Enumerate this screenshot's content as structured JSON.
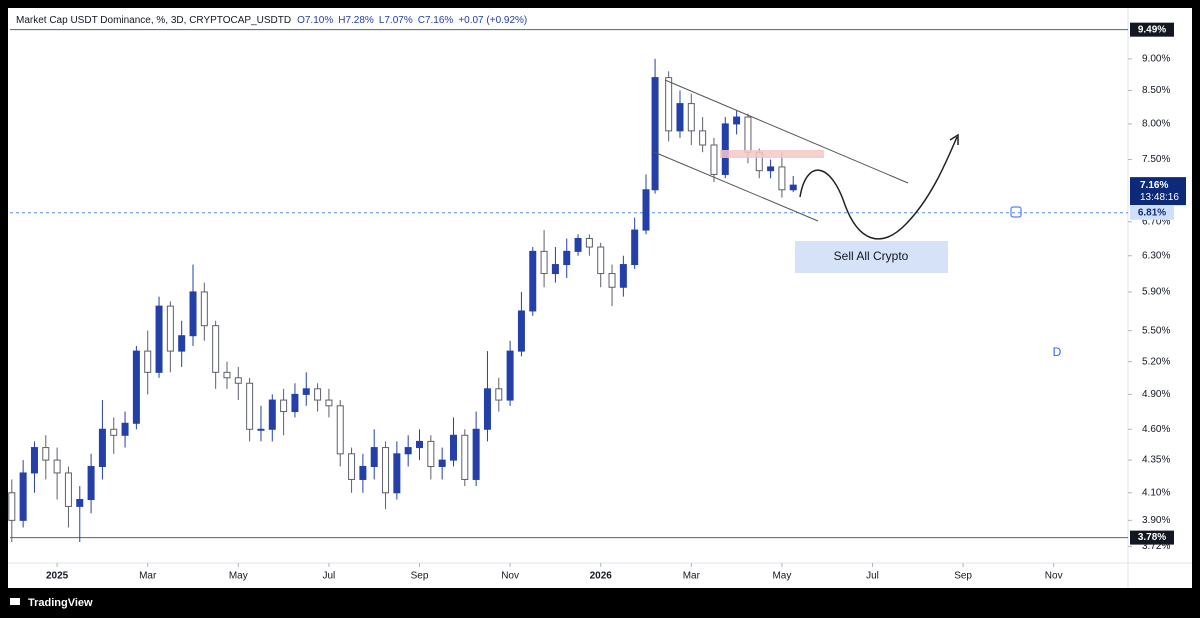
{
  "chart_data": {
    "type": "candlestick",
    "title": "Market Cap USDT Dominance, %, 3D, CRYPTOCAP_USDTD",
    "ohlc_legend": [
      "O7.10%",
      "H7.28%",
      "L7.07%",
      "C7.16%",
      "+0.07 (+0.92%)"
    ],
    "log_scale": true,
    "up_color": "#2440a8",
    "down_color": "#ffffff",
    "down_border": "#5d606b",
    "xlim": [
      -1.04,
      23.64
    ],
    "ylim": [
      3.61,
      9.87
    ],
    "xticks": [
      {
        "value": 0,
        "label": "2025"
      },
      {
        "value": 2,
        "label": "Mar"
      },
      {
        "value": 4,
        "label": "May"
      },
      {
        "value": 6,
        "label": "Jul"
      },
      {
        "value": 8,
        "label": "Sep"
      },
      {
        "value": 10,
        "label": "Nov"
      },
      {
        "value": 12,
        "label": "2026"
      },
      {
        "value": 14,
        "label": "Mar"
      },
      {
        "value": 16,
        "label": "May"
      },
      {
        "value": 18,
        "label": "Jul"
      },
      {
        "value": 20,
        "label": "Sep"
      },
      {
        "value": 22,
        "label": "Nov"
      }
    ],
    "yticks": [
      {
        "value": 9.0,
        "label": "9.00%"
      },
      {
        "value": 8.5,
        "label": "8.50%"
      },
      {
        "value": 8.0,
        "label": "8.00%"
      },
      {
        "value": 7.5,
        "label": "7.50%"
      },
      {
        "value": 6.7,
        "label": "6.70%"
      },
      {
        "value": 6.3,
        "label": "6.30%"
      },
      {
        "value": 5.9,
        "label": "5.90%"
      },
      {
        "value": 5.5,
        "label": "5.50%"
      },
      {
        "value": 5.2,
        "label": "5.20%"
      },
      {
        "value": 4.9,
        "label": "4.90%"
      },
      {
        "value": 4.6,
        "label": "4.60%"
      },
      {
        "value": 4.35,
        "label": "4.35%"
      },
      {
        "value": 4.1,
        "label": "4.10%"
      },
      {
        "value": 3.9,
        "label": "3.90%"
      },
      {
        "value": 3.72,
        "label": "3.72%"
      }
    ],
    "hlines": [
      {
        "value": 9.49,
        "label": "9.49%"
      },
      {
        "value": 3.78,
        "label": "3.78%"
      }
    ],
    "dashed_line": {
      "value": 6.81,
      "label": "6.81%"
    },
    "last_price": {
      "value": 7.16,
      "label": "7.16%",
      "countdown": "13:48:16"
    },
    "annotation": "Sell All Crypto",
    "marker": "D",
    "x": [
      -1.0,
      -0.75,
      -0.5,
      -0.25,
      0,
      0.25,
      0.5,
      0.75,
      1.0,
      1.25,
      1.5,
      1.75,
      2.0,
      2.25,
      2.5,
      2.75,
      3.0,
      3.25,
      3.5,
      3.75,
      4.0,
      4.25,
      4.5,
      4.75,
      5.0,
      5.25,
      5.5,
      5.75,
      6.0,
      6.25,
      6.5,
      6.75,
      7.0,
      7.25,
      7.5,
      7.75,
      8.0,
      8.25,
      8.5,
      8.75,
      9.0,
      9.25,
      9.5,
      9.75,
      10.0,
      10.25,
      10.5,
      10.75,
      11.0,
      11.25,
      11.5,
      11.75,
      12.0,
      12.25,
      12.5,
      12.75,
      13.0,
      13.2,
      13.5,
      13.75,
      14.0,
      14.25,
      14.5,
      14.75,
      15.0,
      15.25,
      15.5,
      15.75,
      16.0,
      16.25
    ],
    "open": [
      4.1,
      3.9,
      4.25,
      4.45,
      4.35,
      4.25,
      4.0,
      4.05,
      4.3,
      4.6,
      4.55,
      4.65,
      5.3,
      5.1,
      5.75,
      5.3,
      5.45,
      5.9,
      5.55,
      5.1,
      5.05,
      5.0,
      4.6,
      4.6,
      4.85,
      4.75,
      4.9,
      4.95,
      4.85,
      4.8,
      4.4,
      4.2,
      4.3,
      4.45,
      4.1,
      4.4,
      4.45,
      4.5,
      4.3,
      4.35,
      4.55,
      4.2,
      4.6,
      4.95,
      4.85,
      5.3,
      5.7,
      6.35,
      6.1,
      6.2,
      6.35,
      6.5,
      6.4,
      6.1,
      5.95,
      6.2,
      6.6,
      7.1,
      8.7,
      7.9,
      8.3,
      7.9,
      7.7,
      7.3,
      8.0,
      8.1,
      7.6,
      7.35,
      7.4,
      7.1
    ],
    "high": [
      4.2,
      4.35,
      4.5,
      4.55,
      4.45,
      4.3,
      4.15,
      4.4,
      4.85,
      4.7,
      4.75,
      5.35,
      5.5,
      5.85,
      5.8,
      5.6,
      6.2,
      6.0,
      5.6,
      5.2,
      5.15,
      5.05,
      4.8,
      4.9,
      4.95,
      5.0,
      5.1,
      5.0,
      4.95,
      4.85,
      4.45,
      4.4,
      4.6,
      4.5,
      4.5,
      4.55,
      4.6,
      4.55,
      4.45,
      4.7,
      4.6,
      4.75,
      5.3,
      5.05,
      5.4,
      5.9,
      6.4,
      6.6,
      6.4,
      6.5,
      6.55,
      6.55,
      6.45,
      6.2,
      6.3,
      6.75,
      7.3,
      9.0,
      8.8,
      8.5,
      8.45,
      8.1,
      7.8,
      8.1,
      8.2,
      8.15,
      7.65,
      7.5,
      7.6,
      7.28
    ],
    "low": [
      3.75,
      3.85,
      4.1,
      4.2,
      4.05,
      3.85,
      3.75,
      3.95,
      4.2,
      4.4,
      4.45,
      4.6,
      4.9,
      5.05,
      5.1,
      5.15,
      5.35,
      5.4,
      4.95,
      4.95,
      4.85,
      4.5,
      4.5,
      4.5,
      4.55,
      4.7,
      4.8,
      4.75,
      4.7,
      4.3,
      4.1,
      4.1,
      4.2,
      3.98,
      4.05,
      4.3,
      4.35,
      4.2,
      4.2,
      4.3,
      4.15,
      4.15,
      4.5,
      4.75,
      4.8,
      5.25,
      5.65,
      5.95,
      6.0,
      6.05,
      6.3,
      6.3,
      5.95,
      5.75,
      5.85,
      6.15,
      6.55,
      7.05,
      7.75,
      7.8,
      7.7,
      7.6,
      7.2,
      7.25,
      7.85,
      7.45,
      7.25,
      7.25,
      7.0,
      7.07
    ],
    "close": [
      3.9,
      4.25,
      4.45,
      4.35,
      4.25,
      4.0,
      4.05,
      4.3,
      4.6,
      4.55,
      4.65,
      5.3,
      5.1,
      5.75,
      5.3,
      5.45,
      5.9,
      5.55,
      5.1,
      5.05,
      5.0,
      4.6,
      4.6,
      4.85,
      4.75,
      4.9,
      4.95,
      4.85,
      4.8,
      4.4,
      4.2,
      4.3,
      4.45,
      4.1,
      4.4,
      4.45,
      4.5,
      4.3,
      4.35,
      4.55,
      4.2,
      4.6,
      4.95,
      4.85,
      5.3,
      5.7,
      6.35,
      6.1,
      6.2,
      6.35,
      6.5,
      6.4,
      6.1,
      5.95,
      6.2,
      6.6,
      7.1,
      8.7,
      7.9,
      8.3,
      7.9,
      7.7,
      7.3,
      8.0,
      8.1,
      7.6,
      7.35,
      7.4,
      7.1,
      7.16
    ]
  }
}
